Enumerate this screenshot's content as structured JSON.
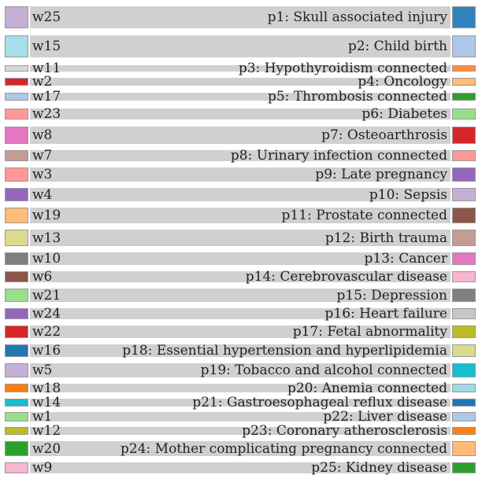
{
  "rows": [
    {
      "left": "w25",
      "left_color": "#c5b0d5",
      "right": "p1: Skull associated injury",
      "right_color": "#3182bd"
    },
    {
      "left": "w15",
      "left_color": "#a6dfe9",
      "right": "p2: Child birth",
      "right_color": "#aec7e8"
    },
    {
      "left": "w11",
      "left_color": "#d9d9d9",
      "right": "p3: Hypothyroidism connected",
      "right_color": "#fd8d3c"
    },
    {
      "left": "w2",
      "left_color": "#d62728",
      "right": "p4: Oncology",
      "right_color": "#ffbb78"
    },
    {
      "left": "w17",
      "left_color": "#aec7e8",
      "right": "p5: Thrombosis connected",
      "right_color": "#2ca02c"
    },
    {
      "left": "w23",
      "left_color": "#ff9896",
      "right": "p6: Diabetes",
      "right_color": "#98df8a"
    },
    {
      "left": "w8",
      "left_color": "#e377c2",
      "right": "p7: Osteoarthrosis",
      "right_color": "#d62728"
    },
    {
      "left": "w7",
      "left_color": "#c49c94",
      "right": "p8: Urinary infection connected",
      "right_color": "#ff9896"
    },
    {
      "left": "w3",
      "left_color": "#ff9896",
      "right": "p9: Late pregnancy",
      "right_color": "#9467bd"
    },
    {
      "left": "w4",
      "left_color": "#9467bd",
      "right": "p10: Sepsis",
      "right_color": "#c5b0d5"
    },
    {
      "left": "w19",
      "left_color": "#ffbb78",
      "right": "p11: Prostate connected",
      "right_color": "#8c564b"
    },
    {
      "left": "w13",
      "left_color": "#dbdb8d",
      "right": "p12: Birth trauma",
      "right_color": "#c49c94"
    },
    {
      "left": "w10",
      "left_color": "#7f7f7f",
      "right": "p13: Cancer",
      "right_color": "#e377c2"
    },
    {
      "left": "w6",
      "left_color": "#8c564b",
      "right": "p14: Cerebrovascular disease",
      "right_color": "#f7b6d2"
    },
    {
      "left": "w21",
      "left_color": "#98df8a",
      "right": "p15: Depression",
      "right_color": "#7f7f7f"
    },
    {
      "left": "w24",
      "left_color": "#9467bd",
      "right": "p16: Heart failure",
      "right_color": "#c7c7c7"
    },
    {
      "left": "w22",
      "left_color": "#d62728",
      "right": "p17: Fetal abnormality",
      "right_color": "#bcbd22"
    },
    {
      "left": "w16",
      "left_color": "#1f77b4",
      "right": "p18: Essential hypertension and hyperlipidemia",
      "right_color": "#dbdb8d"
    },
    {
      "left": "w5",
      "left_color": "#c5b0d5",
      "right": "p19: Tobacco and alcohol connected",
      "right_color": "#17becf"
    },
    {
      "left": "w18",
      "left_color": "#ff7f0e",
      "right": "p20: Anemia connected",
      "right_color": "#9edae5"
    },
    {
      "left": "w14",
      "left_color": "#17becf",
      "right": "p21: Gastroesophageal reflux disease",
      "right_color": "#1f77b4"
    },
    {
      "left": "w1",
      "left_color": "#98df8a",
      "right": "p22: Liver disease",
      "right_color": "#aec7e8"
    },
    {
      "left": "w12",
      "left_color": "#bcbd22",
      "right": "p23: Coronary atherosclerosis",
      "right_color": "#ff7f0e"
    },
    {
      "left": "w20",
      "left_color": "#2ca02c",
      "right": "p24: Mother complicating pregnancy connected",
      "right_color": "#ffbb78"
    },
    {
      "left": "w9",
      "left_color": "#f7b6d2",
      "right": "p25: Kidney disease",
      "right_color": "#2ca02c"
    }
  ]
}
